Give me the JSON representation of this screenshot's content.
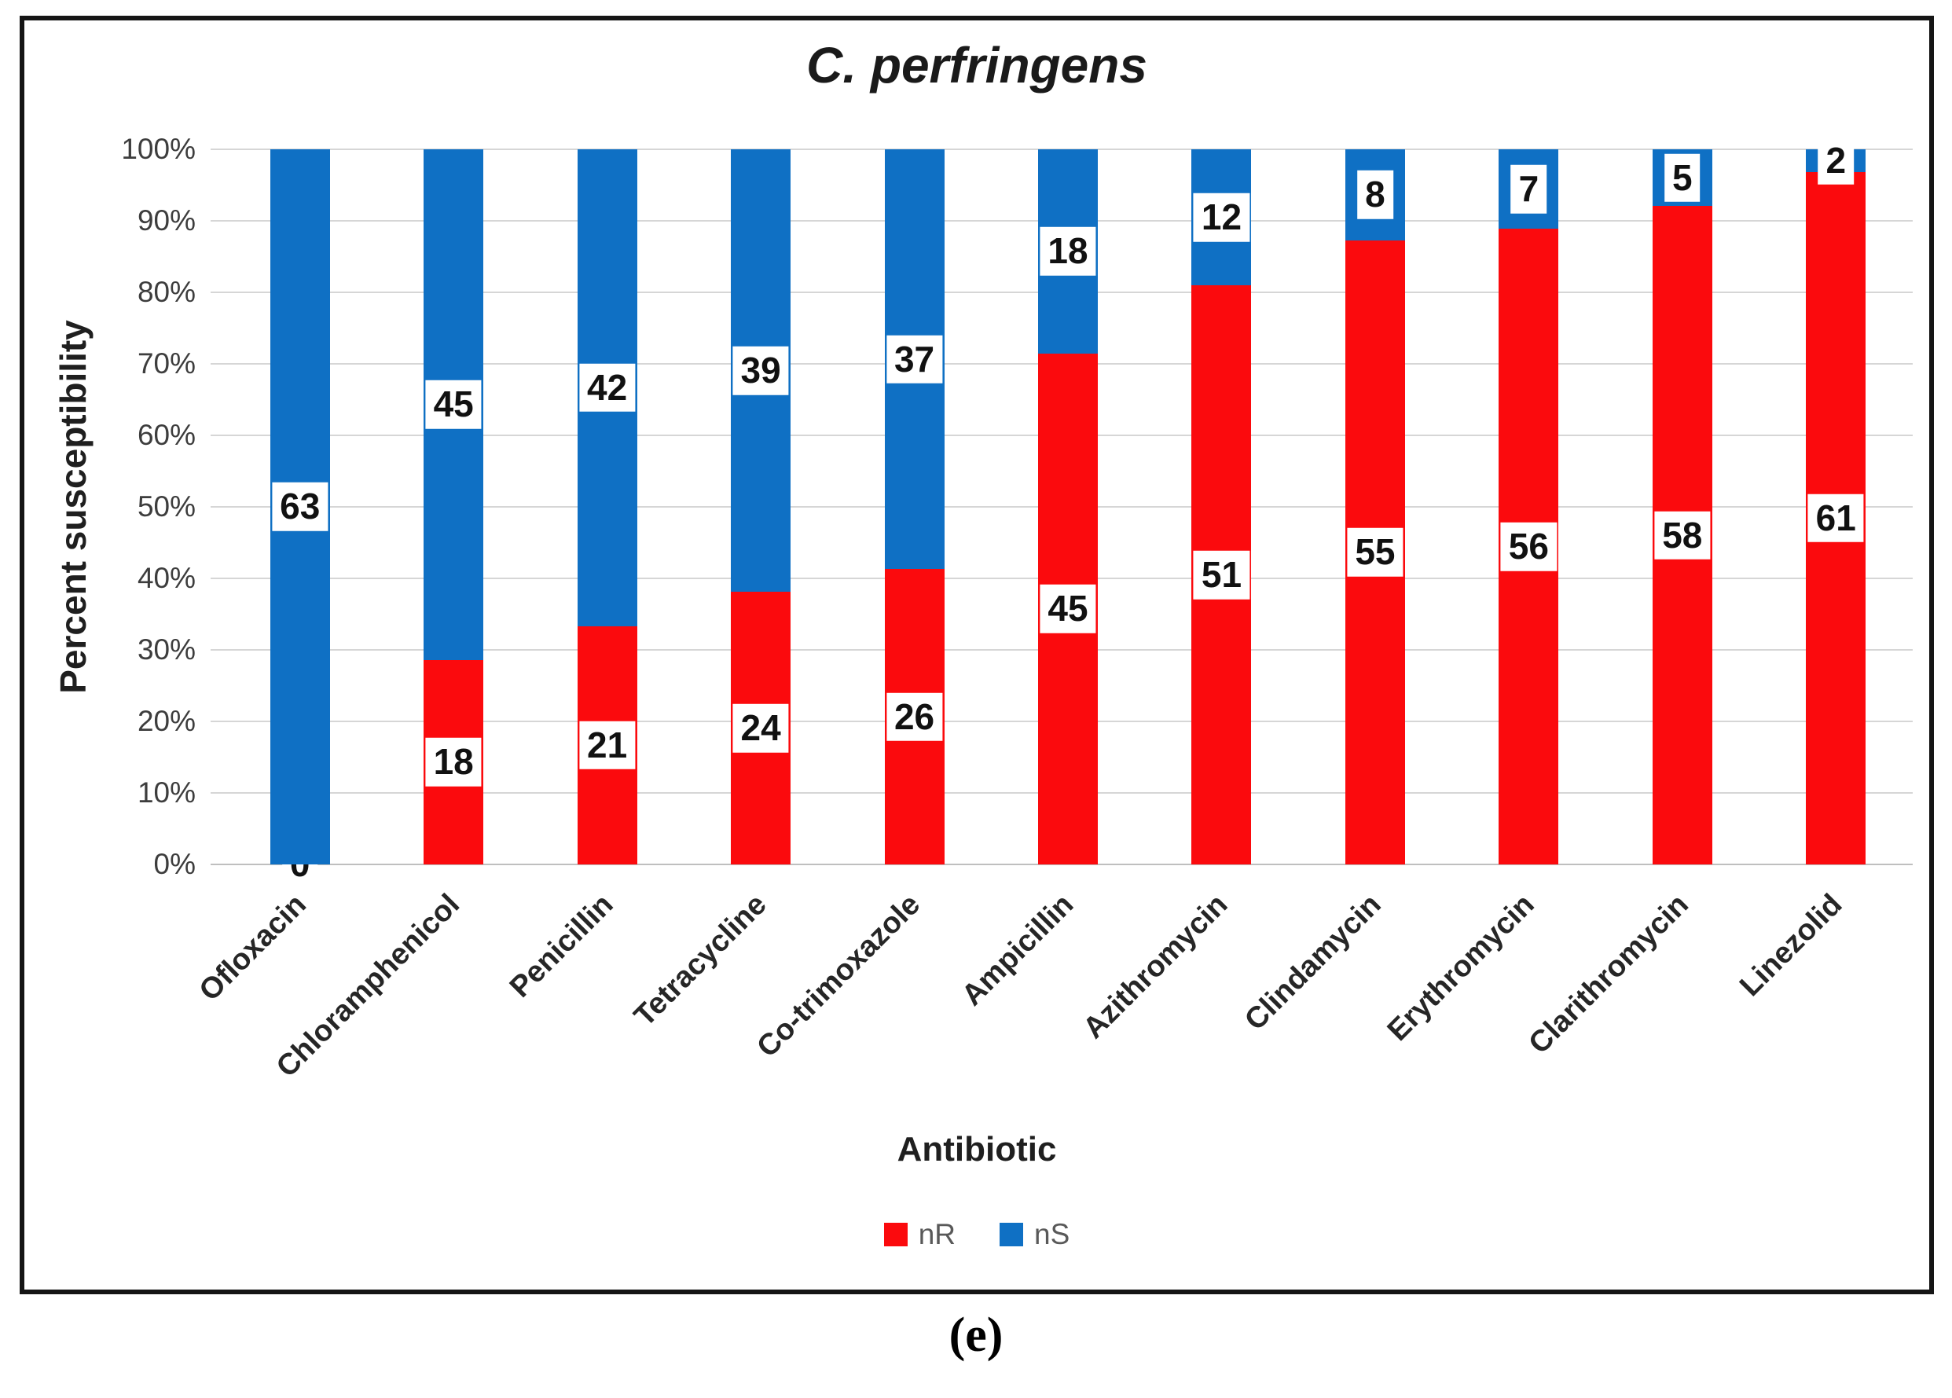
{
  "figure": {
    "caption": "(e)"
  },
  "chart_data": {
    "type": "bar",
    "subtype": "stacked-100-percent",
    "title": "C. perfringens",
    "xlabel": "Antibiotic",
    "ylabel": "Percent susceptibility",
    "categories": [
      "Ofloxacin",
      "Chloramphenicol",
      "Penicillin",
      "Tetracycline",
      "Co-trimoxazole",
      "Ampicillin",
      "Azithromycin",
      "Clindamycin",
      "Erythromycin",
      "Clarithromycin",
      "Linezolid"
    ],
    "series": [
      {
        "name": "nR",
        "color": "#fb0a0d",
        "values": [
          0,
          18,
          21,
          24,
          26,
          45,
          51,
          55,
          56,
          58,
          61
        ]
      },
      {
        "name": "nS",
        "color": "#0f70c4",
        "values": [
          63,
          45,
          42,
          39,
          37,
          18,
          12,
          8,
          7,
          5,
          2
        ]
      }
    ],
    "totals_per_bar": 63,
    "y_ticks_percent": [
      0,
      10,
      20,
      30,
      40,
      50,
      60,
      70,
      80,
      90,
      100
    ],
    "y_tick_suffix": "%",
    "ylim": [
      0,
      100
    ],
    "grid": true,
    "legend_position": "bottom",
    "data_label_style": "white-box-black-text"
  },
  "colors": {
    "gridline": "#d6d6d6",
    "axis_line": "#bfbfbf",
    "tick_text": "#3d3d3d",
    "axis_title_text": "#1f1f1f",
    "category_text": "#262626",
    "legend_text": "#595959",
    "frame_border": "#151515",
    "background": "#ffffff"
  }
}
